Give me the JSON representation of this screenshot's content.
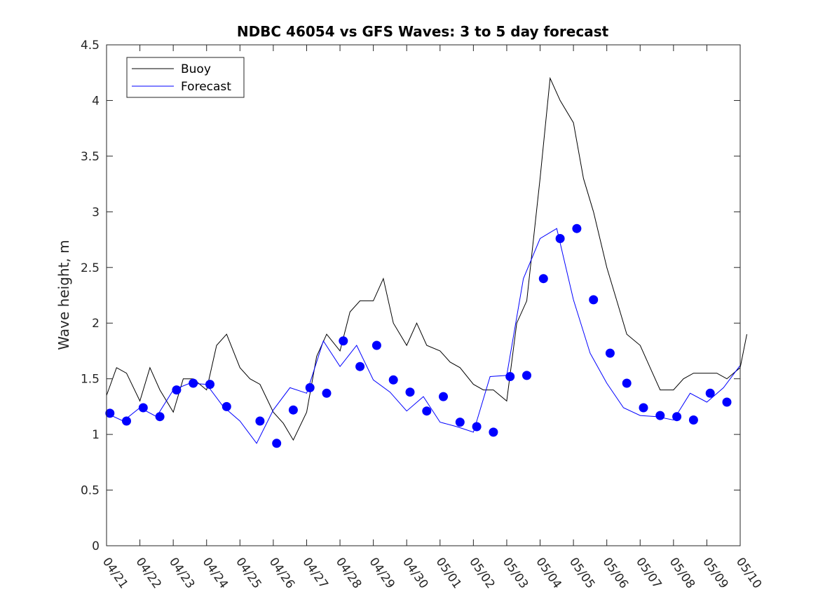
{
  "chart_data": {
    "type": "line",
    "title": "NDBC 46054 vs GFS Waves: 3 to 5 day forecast",
    "xlabel": "",
    "ylabel": "Wave height, m",
    "xlim": [
      "04/21",
      "05/10"
    ],
    "ylim": [
      0,
      4.5
    ],
    "x_ticks": [
      "04/21",
      "04/22",
      "04/23",
      "04/24",
      "04/25",
      "04/26",
      "04/27",
      "04/28",
      "04/29",
      "04/30",
      "05/01",
      "05/02",
      "05/03",
      "05/04",
      "05/05",
      "05/06",
      "05/07",
      "05/08",
      "05/09",
      "05/10"
    ],
    "y_ticks": [
      "0",
      "0.5",
      "1",
      "1.5",
      "2",
      "2.5",
      "3",
      "3.5",
      "4",
      "4.5"
    ],
    "grid": false,
    "legend_position": "top-left",
    "colors": {
      "buoy": "#000000",
      "forecast": "#0000ff",
      "axes": "#262626"
    },
    "series": [
      {
        "name": "Buoy",
        "color": "#000000",
        "x": [
          0,
          0.3,
          0.6,
          1.0,
          1.3,
          1.6,
          2.0,
          2.3,
          2.6,
          3.0,
          3.3,
          3.6,
          4.0,
          4.3,
          4.6,
          5.0,
          5.3,
          5.6,
          6.0,
          6.3,
          6.6,
          7.0,
          7.3,
          7.6,
          8.0,
          8.3,
          8.6,
          9.0,
          9.3,
          9.6,
          10.0,
          10.3,
          10.6,
          11.0,
          11.3,
          11.6,
          12.0,
          12.3,
          12.6,
          13.0,
          13.3,
          13.6,
          14.0,
          14.3,
          14.6,
          15.0,
          15.3,
          15.6,
          16.0,
          16.3,
          16.6,
          17.0,
          17.3,
          17.6,
          18.0,
          18.3,
          18.6,
          19.0,
          19.2
        ],
        "y": [
          1.35,
          1.6,
          1.55,
          1.3,
          1.6,
          1.4,
          1.2,
          1.5,
          1.5,
          1.4,
          1.8,
          1.9,
          1.6,
          1.5,
          1.45,
          1.2,
          1.1,
          0.95,
          1.2,
          1.7,
          1.9,
          1.75,
          2.1,
          2.2,
          2.2,
          2.4,
          2.0,
          1.8,
          2.0,
          1.8,
          1.75,
          1.65,
          1.6,
          1.45,
          1.4,
          1.4,
          1.3,
          2.0,
          2.2,
          3.3,
          4.2,
          4.0,
          3.8,
          3.3,
          3.0,
          2.5,
          2.2,
          1.9,
          1.8,
          1.6,
          1.4,
          1.4,
          1.5,
          1.55,
          1.55,
          1.55,
          1.5,
          1.6,
          1.9
        ]
      },
      {
        "name": "Forecast",
        "color": "#0000ff",
        "x": [
          0,
          0.5,
          1.0,
          1.5,
          2.0,
          2.5,
          3.0,
          3.5,
          4.0,
          4.5,
          5.0,
          5.5,
          6.0,
          6.5,
          7.0,
          7.5,
          8.0,
          8.5,
          9.0,
          9.5,
          10.0,
          10.5,
          11.0,
          11.5,
          12.0,
          12.5,
          13.0,
          13.5,
          14.0,
          14.5,
          15.0,
          15.5,
          16.0,
          16.5,
          17.0,
          17.5,
          18.0,
          18.5,
          19.0
        ],
        "y": [
          1.19,
          1.12,
          1.24,
          1.16,
          1.4,
          1.46,
          1.45,
          1.25,
          1.12,
          0.92,
          1.22,
          1.42,
          1.37,
          1.84,
          1.61,
          1.8,
          1.49,
          1.38,
          1.21,
          1.34,
          1.11,
          1.07,
          1.02,
          1.52,
          1.53,
          2.4,
          2.76,
          2.85,
          2.21,
          1.73,
          1.46,
          1.24,
          1.17,
          1.16,
          1.13,
          1.37,
          1.29,
          1.42,
          1.62
        ]
      }
    ],
    "forecast_markers": {
      "x": [
        0.1,
        0.6,
        1.1,
        1.6,
        2.1,
        2.6,
        3.1,
        3.6,
        4.6,
        5.1,
        5.6,
        6.1,
        6.6,
        7.1,
        7.6,
        8.1,
        8.6,
        9.1,
        9.6,
        10.1,
        10.6,
        11.1,
        11.6,
        12.1,
        12.6,
        13.1,
        13.6,
        14.1,
        14.6,
        15.1,
        15.6,
        16.1,
        16.6,
        17.1,
        17.6,
        18.1,
        18.6
      ],
      "y": [
        1.19,
        1.12,
        1.24,
        1.16,
        1.4,
        1.46,
        1.45,
        1.25,
        1.12,
        0.92,
        1.22,
        1.42,
        1.37,
        1.84,
        1.61,
        1.8,
        1.49,
        1.38,
        1.21,
        1.34,
        1.11,
        1.07,
        1.02,
        1.52,
        1.53,
        2.4,
        2.76,
        2.85,
        2.21,
        1.73,
        1.46,
        1.24,
        1.17,
        1.16,
        1.13,
        1.37,
        1.29
      ]
    }
  }
}
